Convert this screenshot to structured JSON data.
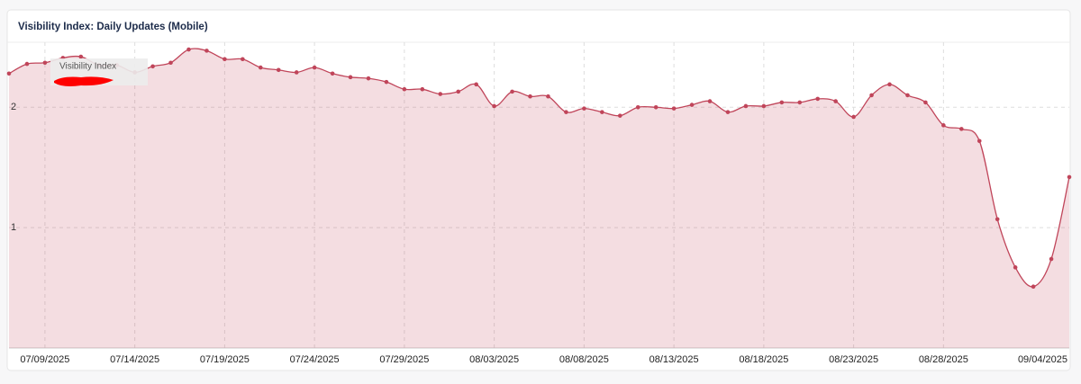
{
  "chart_data": {
    "type": "area",
    "title": "Visibility Index: Daily Updates (Mobile)",
    "categories": [
      null,
      null,
      "07/09/2025",
      null,
      null,
      null,
      null,
      "07/14/2025",
      null,
      null,
      null,
      null,
      "07/19/2025",
      null,
      null,
      null,
      null,
      "07/24/2025",
      null,
      null,
      null,
      null,
      "07/29/2025",
      null,
      null,
      null,
      null,
      "08/03/2025",
      null,
      null,
      null,
      null,
      "08/08/2025",
      null,
      null,
      null,
      null,
      "08/13/2025",
      null,
      null,
      null,
      null,
      "08/18/2025",
      null,
      null,
      null,
      null,
      "08/23/2025",
      null,
      null,
      null,
      null,
      "08/28/2025",
      null,
      null,
      null,
      null,
      null,
      null,
      "09/04/2025"
    ],
    "series": [
      {
        "name": "Visibility Index",
        "color": "#c0455a",
        "values": [
          2.28,
          2.36,
          2.37,
          2.41,
          2.42,
          2.35,
          2.35,
          2.29,
          2.34,
          2.37,
          2.48,
          2.47,
          2.4,
          2.4,
          2.33,
          2.31,
          2.29,
          2.33,
          2.28,
          2.25,
          2.24,
          2.21,
          2.15,
          2.15,
          2.11,
          2.13,
          2.19,
          2.01,
          2.13,
          2.09,
          2.09,
          1.96,
          1.99,
          1.96,
          1.93,
          2.0,
          2.0,
          1.99,
          2.02,
          2.05,
          1.96,
          2.01,
          2.01,
          2.04,
          2.04,
          2.07,
          2.05,
          1.92,
          2.1,
          2.19,
          2.1,
          2.04,
          1.85,
          1.82,
          1.72,
          1.07,
          0.67,
          0.51,
          0.74,
          1.42
        ]
      }
    ],
    "ylim": [
      0,
      2.54
    ],
    "yticks": [
      1,
      2
    ],
    "grid": true
  }
}
